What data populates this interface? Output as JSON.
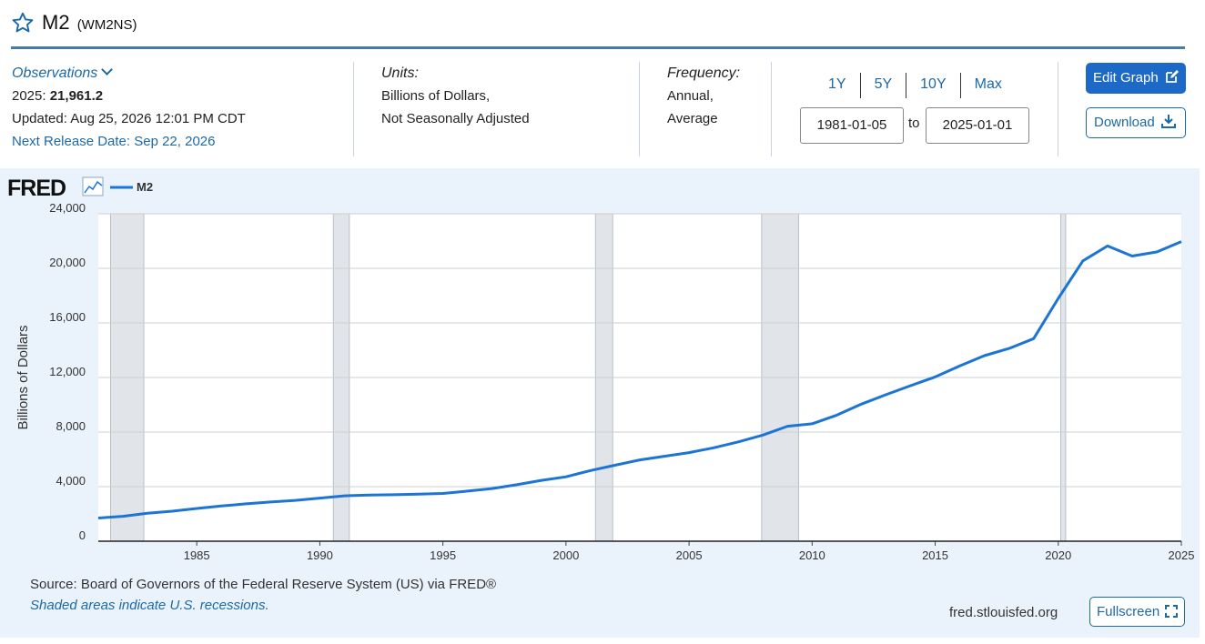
{
  "header": {
    "title": "M2",
    "code": "(WM2NS)"
  },
  "observations": {
    "link_label": "Observations",
    "latest_label": "2025:",
    "latest_value": "21,961.2",
    "updated": "Updated: Aug 25, 2026 12:01 PM CDT",
    "next_release": "Next Release Date: Sep 22, 2026"
  },
  "units": {
    "label": "Units:",
    "line1": "Billions of Dollars,",
    "line2": "Not Seasonally Adjusted"
  },
  "frequency": {
    "label": "Frequency:",
    "line1": "Annual,",
    "line2": "Average"
  },
  "range_buttons": [
    "1Y",
    "5Y",
    "10Y",
    "Max"
  ],
  "date_range": {
    "start": "1981-01-05",
    "to": "to",
    "end": "2025-01-01"
  },
  "buttons": {
    "edit": "Edit Graph",
    "download": "Download",
    "fullscreen": "Fullscreen"
  },
  "footer": {
    "source": "Source: Board of Governors of the Federal Reserve System (US) via FRED®",
    "shade_note": "Shaded areas indicate U.S. recessions.",
    "site": "fred.stlouisfed.org"
  },
  "colors": {
    "accent": "#1c69c8",
    "line": "#1c74d4",
    "recession": "#e1e5ea",
    "panel": "#eaf2fb"
  },
  "chart_data": {
    "type": "line",
    "logo": "FRED",
    "ylabel": "Billions of Dollars",
    "ylim": [
      0,
      24000
    ],
    "xlim": [
      1981.0,
      2025.0
    ],
    "y_ticks": [
      0,
      4000,
      8000,
      12000,
      16000,
      20000,
      24000
    ],
    "y_tick_labels": [
      "0",
      "4,000",
      "8,000",
      "12,000",
      "16,000",
      "20,000",
      "24,000"
    ],
    "x_ticks": [
      1985,
      1990,
      1995,
      2000,
      2005,
      2010,
      2015,
      2020,
      2025
    ],
    "x_tick_labels": [
      "1985",
      "1990",
      "1995",
      "2000",
      "2005",
      "2010",
      "2015",
      "2020",
      "2025"
    ],
    "grid": true,
    "legend_position": "top-left",
    "recessions": [
      [
        1981.5,
        1982.85
      ],
      [
        1990.55,
        1991.2
      ],
      [
        2001.2,
        2001.9
      ],
      [
        2007.95,
        2009.45
      ],
      [
        2020.1,
        2020.3
      ]
    ],
    "series": [
      {
        "name": "M2",
        "x": [
          1981,
          1982,
          1983,
          1984,
          1985,
          1986,
          1987,
          1988,
          1989,
          1990,
          1991,
          1992,
          1993,
          1994,
          1995,
          1996,
          1997,
          1998,
          1999,
          2000,
          2001,
          2002,
          2003,
          2004,
          2005,
          2006,
          2007,
          2008,
          2009,
          2010,
          2011,
          2012,
          2013,
          2014,
          2015,
          2016,
          2017,
          2018,
          2019,
          2020,
          2021,
          2022,
          2023,
          2024,
          2025
        ],
        "values": [
          1700,
          1830,
          2050,
          2200,
          2400,
          2580,
          2740,
          2870,
          2990,
          3160,
          3330,
          3380,
          3410,
          3450,
          3500,
          3670,
          3860,
          4140,
          4460,
          4720,
          5180,
          5570,
          5960,
          6230,
          6490,
          6850,
          7280,
          7780,
          8430,
          8610,
          9240,
          10050,
          10740,
          11400,
          12040,
          12850,
          13600,
          14130,
          14850,
          17800,
          20550,
          21640,
          20900,
          21200,
          21961.2
        ]
      }
    ]
  }
}
